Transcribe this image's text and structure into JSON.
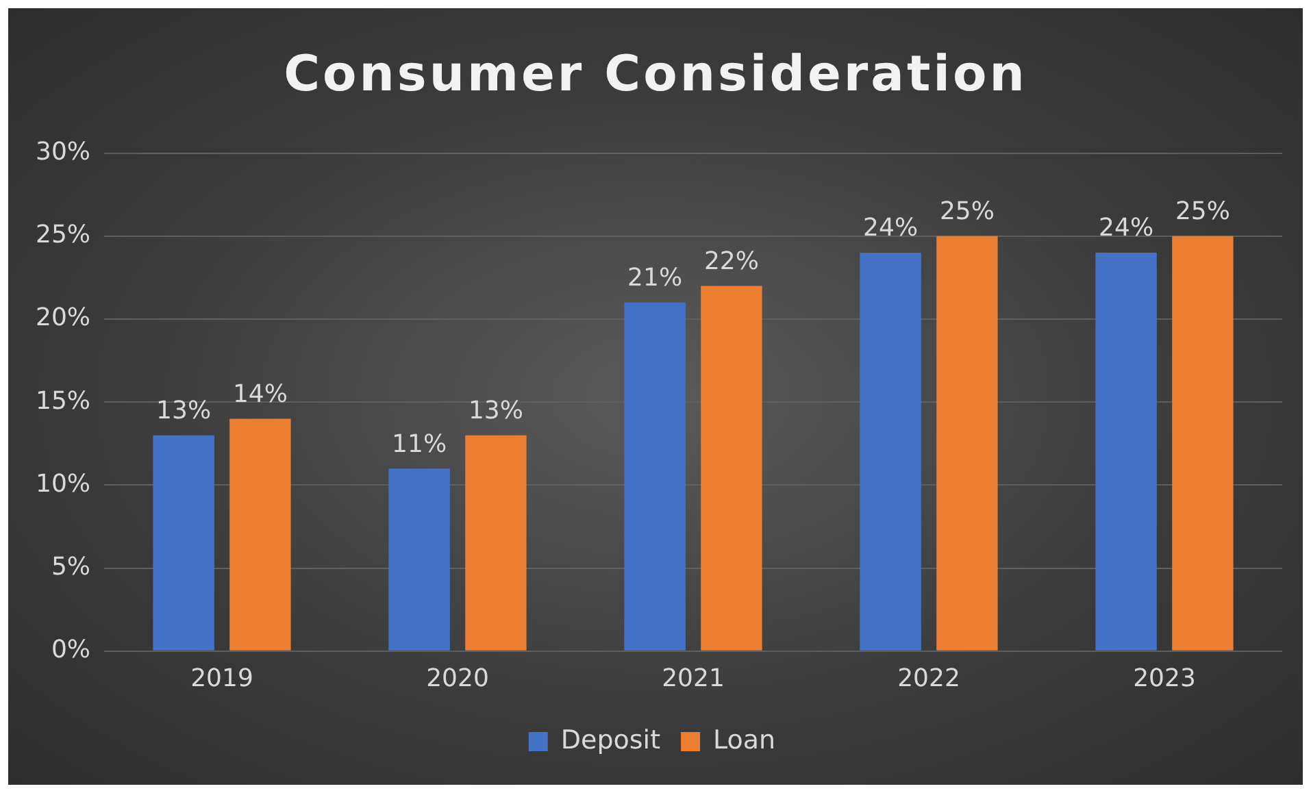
{
  "chart_data": {
    "type": "bar",
    "title": "Consumer Consideration",
    "categories": [
      "2019",
      "2020",
      "2021",
      "2022",
      "2023"
    ],
    "series": [
      {
        "name": "Deposit",
        "color": "#4472c4",
        "values": [
          13,
          11,
          21,
          24,
          24
        ],
        "value_labels": [
          "13%",
          "11%",
          "21%",
          "24%",
          "24%"
        ]
      },
      {
        "name": "Loan",
        "color": "#ed7d31",
        "values": [
          14,
          13,
          22,
          25,
          25
        ],
        "value_labels": [
          "14%",
          "13%",
          "22%",
          "25%",
          "25%"
        ]
      }
    ],
    "ylim": [
      0,
      30
    ],
    "yticks": [
      {
        "value": 0,
        "label": "0%"
      },
      {
        "value": 5,
        "label": "5%"
      },
      {
        "value": 10,
        "label": "10%"
      },
      {
        "value": 15,
        "label": "15%"
      },
      {
        "value": 20,
        "label": "20%"
      },
      {
        "value": 25,
        "label": "25%"
      },
      {
        "value": 30,
        "label": "30%"
      }
    ],
    "grid": "y",
    "legend": "bottom"
  }
}
